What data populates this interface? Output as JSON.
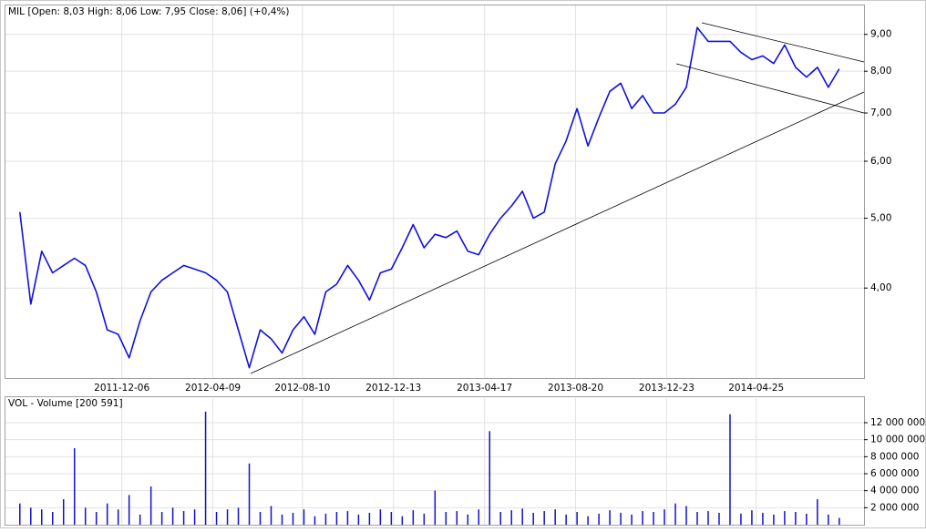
{
  "chart_data": [
    {
      "type": "line",
      "title": "MIL [Open: 8,03 High: 8,06 Low: 7,95 Close: 8,06] (+0,4%)",
      "color": "#1010e0",
      "log_scale": true,
      "grid": true,
      "x": [
        "2011-07-19",
        "2011-08-03",
        "2011-08-18",
        "2011-09-02",
        "2011-09-17",
        "2011-10-02",
        "2011-10-17",
        "2011-11-01",
        "2011-11-16",
        "2011-12-01",
        "2011-12-16",
        "2011-12-31",
        "2012-01-15",
        "2012-01-30",
        "2012-02-14",
        "2012-02-29",
        "2012-03-15",
        "2012-03-30",
        "2012-04-14",
        "2012-04-29",
        "2012-05-14",
        "2012-05-29",
        "2012-06-13",
        "2012-06-28",
        "2012-07-13",
        "2012-07-28",
        "2012-08-12",
        "2012-08-27",
        "2012-09-11",
        "2012-09-26",
        "2012-10-11",
        "2012-10-26",
        "2012-11-10",
        "2012-11-25",
        "2012-12-10",
        "2012-12-25",
        "2013-01-09",
        "2013-01-24",
        "2013-02-08",
        "2013-02-23",
        "2013-03-10",
        "2013-03-25",
        "2013-04-09",
        "2013-04-24",
        "2013-05-09",
        "2013-05-24",
        "2013-06-08",
        "2013-06-23",
        "2013-07-08",
        "2013-07-23",
        "2013-08-07",
        "2013-08-22",
        "2013-09-06",
        "2013-09-21",
        "2013-10-06",
        "2013-10-21",
        "2013-11-05",
        "2013-11-20",
        "2013-12-05",
        "2013-12-20",
        "2014-01-04",
        "2014-01-19",
        "2014-02-03",
        "2014-02-18",
        "2014-03-05",
        "2014-03-20",
        "2014-04-04",
        "2014-04-19",
        "2014-05-04",
        "2014-05-19",
        "2014-06-03",
        "2014-06-18",
        "2014-07-03",
        "2014-07-18",
        "2014-08-02",
        "2014-08-17"
      ],
      "values": [
        5.1,
        3.8,
        4.5,
        4.2,
        4.3,
        4.4,
        4.3,
        3.95,
        3.5,
        3.45,
        3.2,
        3.6,
        3.95,
        4.1,
        4.2,
        4.3,
        4.25,
        4.2,
        4.1,
        3.95,
        3.5,
        3.1,
        3.5,
        3.4,
        3.25,
        3.5,
        3.65,
        3.45,
        3.95,
        4.05,
        4.3,
        4.1,
        3.85,
        4.2,
        4.25,
        4.55,
        4.9,
        4.55,
        4.75,
        4.7,
        4.8,
        4.5,
        4.45,
        4.75,
        5.0,
        5.2,
        5.45,
        5.0,
        5.1,
        5.95,
        6.4,
        7.1,
        6.3,
        6.9,
        7.5,
        7.7,
        7.1,
        7.4,
        7.0,
        7.0,
        7.2,
        7.6,
        9.2,
        8.8,
        8.8,
        8.8,
        8.5,
        8.3,
        8.4,
        8.2,
        8.7,
        8.1,
        7.85,
        8.1,
        7.6,
        8.06
      ],
      "xlim": [
        "2011-06-28",
        "2014-09-20"
      ],
      "xticks": [
        "2011-12-06",
        "2012-04-09",
        "2012-08-10",
        "2012-12-13",
        "2013-04-17",
        "2013-08-20",
        "2013-12-23",
        "2014-04-25"
      ],
      "ylim": [
        3.0,
        9.9
      ],
      "yticks": [
        {
          "value": 4,
          "label": "4,00"
        },
        {
          "value": 5,
          "label": "5,00"
        },
        {
          "value": 6,
          "label": "6,00"
        },
        {
          "value": 7,
          "label": "7,00"
        },
        {
          "value": 8,
          "label": "8,00"
        },
        {
          "value": 9,
          "label": "9,00"
        }
      ]
    },
    {
      "type": "bar",
      "title": "VOL - Volume [200 591]",
      "color": "#1010d0",
      "grid": true,
      "x": [
        "2011-07-19",
        "2011-08-03",
        "2011-08-18",
        "2011-09-02",
        "2011-09-17",
        "2011-10-02",
        "2011-10-17",
        "2011-11-01",
        "2011-11-16",
        "2011-12-01",
        "2011-12-16",
        "2011-12-31",
        "2012-01-15",
        "2012-01-30",
        "2012-02-14",
        "2012-02-29",
        "2012-03-15",
        "2012-03-30",
        "2012-04-14",
        "2012-04-29",
        "2012-05-14",
        "2012-05-29",
        "2012-06-13",
        "2012-06-28",
        "2012-07-13",
        "2012-07-28",
        "2012-08-12",
        "2012-08-27",
        "2012-09-11",
        "2012-09-26",
        "2012-10-11",
        "2012-10-26",
        "2012-11-10",
        "2012-11-25",
        "2012-12-10",
        "2012-12-25",
        "2013-01-09",
        "2013-01-24",
        "2013-02-08",
        "2013-02-23",
        "2013-03-10",
        "2013-03-25",
        "2013-04-09",
        "2013-04-24",
        "2013-05-09",
        "2013-05-24",
        "2013-06-08",
        "2013-06-23",
        "2013-07-08",
        "2013-07-23",
        "2013-08-07",
        "2013-08-22",
        "2013-09-06",
        "2013-09-21",
        "2013-10-06",
        "2013-10-21",
        "2013-11-05",
        "2013-11-20",
        "2013-12-05",
        "2013-12-20",
        "2014-01-04",
        "2014-01-19",
        "2014-02-03",
        "2014-02-18",
        "2014-03-05",
        "2014-03-20",
        "2014-04-04",
        "2014-04-19",
        "2014-05-04",
        "2014-05-19",
        "2014-06-03",
        "2014-06-18",
        "2014-07-03",
        "2014-07-18",
        "2014-08-02",
        "2014-08-17"
      ],
      "values": [
        2500000,
        2000000,
        1800000,
        1500000,
        3000000,
        9000000,
        2000000,
        1500000,
        2500000,
        1800000,
        3500000,
        1200000,
        4500000,
        1500000,
        2000000,
        1600000,
        1800000,
        13300000,
        1500000,
        1800000,
        2000000,
        7200000,
        1500000,
        2200000,
        1200000,
        1400000,
        1800000,
        1000000,
        1300000,
        1500000,
        1600000,
        1200000,
        1400000,
        1800000,
        1500000,
        1000000,
        1700000,
        1300000,
        4000000,
        1500000,
        1600000,
        1200000,
        1800000,
        11000000,
        1500000,
        1700000,
        1900000,
        1400000,
        1600000,
        1800000,
        1200000,
        1500000,
        1000000,
        1300000,
        1700000,
        1400000,
        1200000,
        1600000,
        1500000,
        1800000,
        2500000,
        2200000,
        1500000,
        1600000,
        1400000,
        13000000,
        1300000,
        1700000,
        1400000,
        1200000,
        1600000,
        1500000,
        1300000,
        3000000,
        1200000,
        800000
      ],
      "xlim": [
        "2011-06-28",
        "2014-09-20"
      ],
      "xticks": [
        "2011-12-06",
        "2012-04-09",
        "2012-08-10",
        "2012-12-13",
        "2013-04-17",
        "2013-08-20",
        "2013-12-23",
        "2014-04-25"
      ],
      "ylim": [
        0,
        15000000
      ],
      "yticks": [
        {
          "value": 2000000,
          "label": "2 000 000"
        },
        {
          "value": 4000000,
          "label": "4 000 000"
        },
        {
          "value": 6000000,
          "label": "6 000 000"
        },
        {
          "value": 8000000,
          "label": "8 000 000"
        },
        {
          "value": 10000000,
          "label": "10 000 000"
        },
        {
          "value": 12000000,
          "label": "12 000 000"
        }
      ]
    }
  ]
}
